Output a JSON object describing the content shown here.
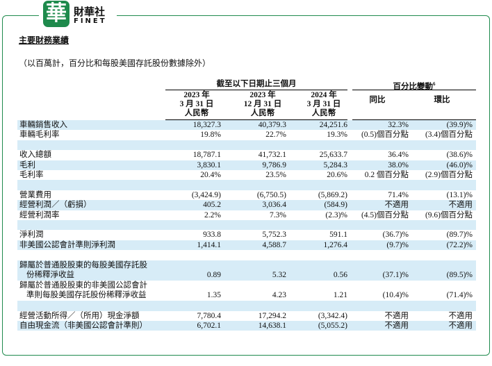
{
  "logo": {
    "mark": "華",
    "name": "財華社",
    "latin": "FINET"
  },
  "title": "主要財務業績",
  "subtitle": "（以百萬計，百分比和每股美國存託股份數據除外）",
  "table": {
    "period_header": "截至以下日期止三個月",
    "change_header": "百分比變動",
    "change_note": "6",
    "columns": [
      [
        "2023 年",
        "3 月 31 日",
        "人民幣"
      ],
      [
        "2023 年",
        "12 月 31 日",
        "人民幣"
      ],
      [
        "2024 年",
        "3 月 31 日",
        "人民幣"
      ],
      [
        "同比"
      ],
      [
        "環比"
      ]
    ],
    "groups": [
      [
        {
          "label": [
            "車輛銷售收入"
          ],
          "values": [
            "18,327.3",
            "40,379.3",
            "24,251.6",
            "32.3%",
            "(39.9)%"
          ]
        },
        {
          "label": [
            "車輛毛利率"
          ],
          "values": [
            "19.8%",
            "22.7%",
            "19.3%",
            "(0.5)個百分點",
            "(3.4)個百分點"
          ]
        }
      ],
      [
        {
          "label": [
            "收入總額"
          ],
          "values": [
            "18,787.1",
            "41,732.1",
            "25,633.7",
            "36.4%",
            "(38.6)%"
          ]
        },
        {
          "label": [
            "毛利"
          ],
          "values": [
            "3,830.1",
            "9,786.9",
            "5,284.3",
            "38.0%",
            "(46.0)%"
          ]
        },
        {
          "label": [
            "毛利率"
          ],
          "values": [
            "20.4%",
            "23.5%",
            "20.6%",
            "0.2 個百分點",
            "(2.9)個百分點"
          ]
        }
      ],
      [
        {
          "label": [
            "營業費用"
          ],
          "values": [
            "(3,424.9)",
            "(6,750.5)",
            "(5,869.2)",
            "71.4%",
            "(13.1)%"
          ]
        },
        {
          "label": [
            "經營利潤／（虧損）"
          ],
          "values": [
            "405.2",
            "3,036.4",
            "(584.9)",
            "不適用",
            "不適用"
          ]
        },
        {
          "label": [
            "經營利潤率"
          ],
          "values": [
            "2.2%",
            "7.3%",
            "(2.3)%",
            "(4.5)個百分點",
            "(9.6)個百分點"
          ]
        }
      ],
      [
        {
          "label": [
            "淨利潤"
          ],
          "values": [
            "933.8",
            "5,752.3",
            "591.1",
            "(36.7)%",
            "(89.7)%"
          ]
        },
        {
          "label": [
            "非美國公認會計準則淨利潤"
          ],
          "values": [
            "1,414.1",
            "4,588.7",
            "1,276.4",
            "(9.7)%",
            "(72.2)%"
          ]
        }
      ],
      [
        {
          "label": [
            "歸屬於普通股股東的每股美國存託股",
            "份稀釋淨收益"
          ],
          "values": [
            "0.89",
            "5.32",
            "0.56",
            "(37.1)%",
            "(89.5)%"
          ]
        },
        {
          "label": [
            "歸屬於普通股股東的非美國公認會計",
            "準則每股美國存託股份稀釋淨收益"
          ],
          "values": [
            "1.35",
            "4.23",
            "1.21",
            "(10.4)%",
            "(71.4)%"
          ]
        }
      ],
      [
        {
          "label": [
            "經營活動所得／（所用）現金淨額"
          ],
          "values": [
            "7,780.4",
            "17,294.2",
            "(3,342.4)",
            "不適用",
            "不適用"
          ]
        },
        {
          "label": [
            "自由現金流（非美國公認會計準則）"
          ],
          "values": [
            "6,702.1",
            "14,638.1",
            "(5,055.2)",
            "不適用",
            "不適用"
          ]
        }
      ]
    ]
  }
}
